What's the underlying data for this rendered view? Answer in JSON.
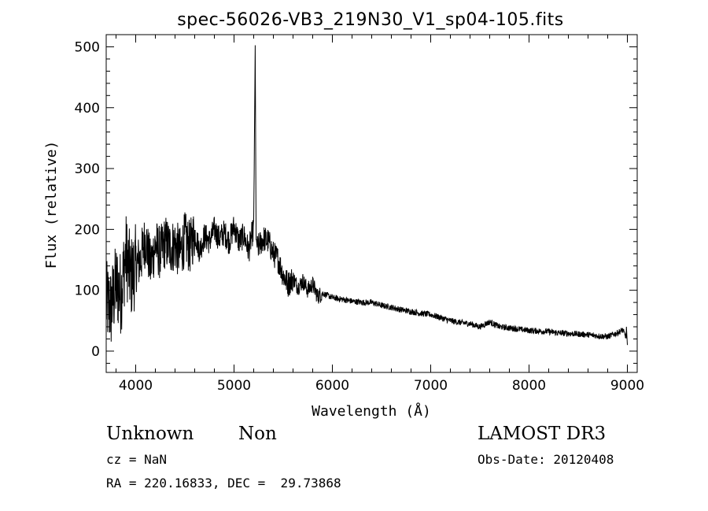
{
  "chart_data": {
    "type": "line",
    "title": "spec-56026-VB3_219N30_V1_sp04-105.fits",
    "xlabel": "Wavelength (Å)",
    "ylabel": "Flux (relative)",
    "xlim": [
      3700,
      9100
    ],
    "ylim": [
      -35,
      520
    ],
    "x_ticks": [
      4000,
      5000,
      6000,
      7000,
      8000,
      9000
    ],
    "x_tick_labels": [
      "4000",
      "5000",
      "6000",
      "7000",
      "8000",
      "9000"
    ],
    "y_ticks": [
      0,
      100,
      200,
      300,
      400,
      500
    ],
    "y_tick_labels": [
      "0",
      "100",
      "200",
      "300",
      "400",
      "500"
    ],
    "series": [
      {
        "name": "spectrum",
        "x": [
          3700,
          3750,
          3800,
          3850,
          3900,
          3950,
          4000,
          4050,
          4100,
          4150,
          4200,
          4250,
          4300,
          4350,
          4400,
          4450,
          4500,
          4550,
          4600,
          4650,
          4700,
          4750,
          4800,
          4850,
          4900,
          4950,
          5000,
          5050,
          5100,
          5150,
          5180,
          5200,
          5215,
          5225,
          5240,
          5260,
          5300,
          5350,
          5400,
          5450,
          5500,
          5550,
          5600,
          5650,
          5700,
          5750,
          5800,
          5850,
          5900,
          6000,
          6100,
          6200,
          6300,
          6400,
          6500,
          6600,
          6700,
          6800,
          6900,
          7000,
          7100,
          7200,
          7300,
          7400,
          7500,
          7600,
          7700,
          7800,
          7900,
          8000,
          8100,
          8200,
          8300,
          8400,
          8500,
          8600,
          8700,
          8800,
          8900,
          8950,
          9000
        ],
        "y": [
          80,
          70,
          110,
          95,
          160,
          120,
          140,
          150,
          185,
          140,
          175,
          160,
          180,
          170,
          175,
          160,
          185,
          170,
          195,
          165,
          190,
          180,
          200,
          185,
          195,
          180,
          205,
          180,
          190,
          165,
          190,
          200,
          500,
          180,
          170,
          175,
          185,
          180,
          160,
          150,
          125,
          110,
          120,
          105,
          115,
          100,
          110,
          90,
          95,
          88,
          85,
          82,
          80,
          80,
          75,
          72,
          68,
          65,
          62,
          60,
          55,
          50,
          47,
          45,
          40,
          48,
          40,
          38,
          36,
          34,
          33,
          32,
          30,
          29,
          28,
          27,
          25,
          24,
          30,
          35,
          20
        ]
      }
    ]
  },
  "info": {
    "object_class": "Unknown",
    "object_subclass": "Non",
    "survey": "LAMOST DR3",
    "redshift": "cz = NaN",
    "obs_date": "Obs-Date: 20120408",
    "coords": "RA = 220.16833, DEC =  29.73868"
  }
}
